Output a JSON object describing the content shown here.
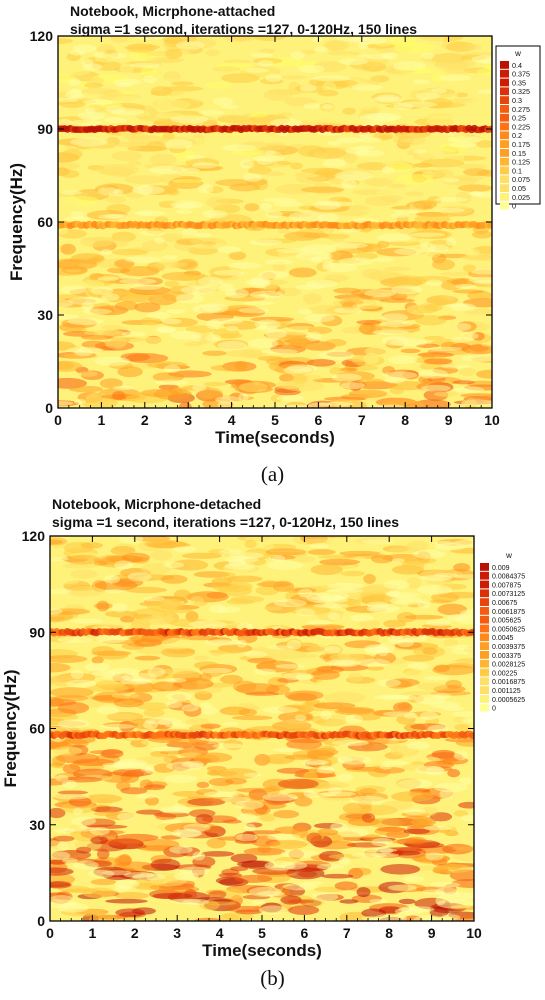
{
  "captions": [
    "(a)",
    "(b)"
  ],
  "chart_data": [
    {
      "type": "heatmap",
      "title": "Notebook, Micrphone-attached",
      "subtitle": "sigma =1 second, iterations =127, 0-120Hz, 150 lines",
      "xlabel": "Time(seconds)",
      "ylabel": "Frequency(Hz)",
      "xlim": [
        0,
        10
      ],
      "ylim": [
        0,
        120
      ],
      "xticks": [
        "0",
        "1",
        "2",
        "3",
        "4",
        "5",
        "6",
        "7",
        "8",
        "9",
        "10"
      ],
      "yticks": [
        "0",
        "30",
        "60",
        "90",
        "120"
      ],
      "legend_title": "w",
      "legend_levels": [
        "0.4",
        "0.375",
        "0.35",
        "0.325",
        "0.3",
        "0.275",
        "0.25",
        "0.225",
        "0.2",
        "0.175",
        "0.15",
        "0.125",
        "0.1",
        "0.075",
        "0.05",
        "0.025",
        "0"
      ],
      "legend_placement": "right",
      "colormap": [
        "#ffff66",
        "#fff27a",
        "#ffe066",
        "#ffcc44",
        "#ffb733",
        "#ff9f22",
        "#ff8a1a",
        "#ff7314",
        "#f55c10",
        "#e8450c",
        "#dc3008",
        "#cc1c06",
        "#bb1004"
      ],
      "background_level": 0.07,
      "bands": [
        {
          "frequency": 90,
          "value": 0.36
        },
        {
          "frequency": 59,
          "value": 0.17
        }
      ]
    },
    {
      "type": "heatmap",
      "title": "Notebook, Micrphone-detached",
      "subtitle": "sigma =1 second, iterations =127, 0-120Hz, 150 lines",
      "xlabel": "Time(seconds)",
      "ylabel": "Frequency(Hz)",
      "xlim": [
        0,
        10
      ],
      "ylim": [
        0,
        120
      ],
      "xticks": [
        "0",
        "1",
        "2",
        "3",
        "4",
        "5",
        "6",
        "7",
        "8",
        "9",
        "10"
      ],
      "yticks": [
        "0",
        "30",
        "60",
        "90",
        "120"
      ],
      "legend_title": "w",
      "legend_levels": [
        "0.009",
        "0.0084375",
        "0.007875",
        "0.0073125",
        "0.00675",
        "0.0061875",
        "0.005625",
        "0.0050625",
        "0.0045",
        "0.0039375",
        "0.003375",
        "0.0028125",
        "0.00225",
        "0.0016875",
        "0.001125",
        "0.0005625",
        "0"
      ],
      "legend_placement": "right",
      "colormap": [
        "#ffff66",
        "#fff27a",
        "#ffe066",
        "#ffcc44",
        "#ffb733",
        "#ff9f22",
        "#ff8a1a",
        "#ff7314",
        "#f55c10",
        "#e8450c",
        "#dc3008",
        "#cc1c06",
        "#bb1004"
      ],
      "background_level": 0.0025,
      "bands": [
        {
          "frequency": 90,
          "value": 0.0065
        },
        {
          "frequency": 58,
          "value": 0.0058
        }
      ]
    }
  ]
}
